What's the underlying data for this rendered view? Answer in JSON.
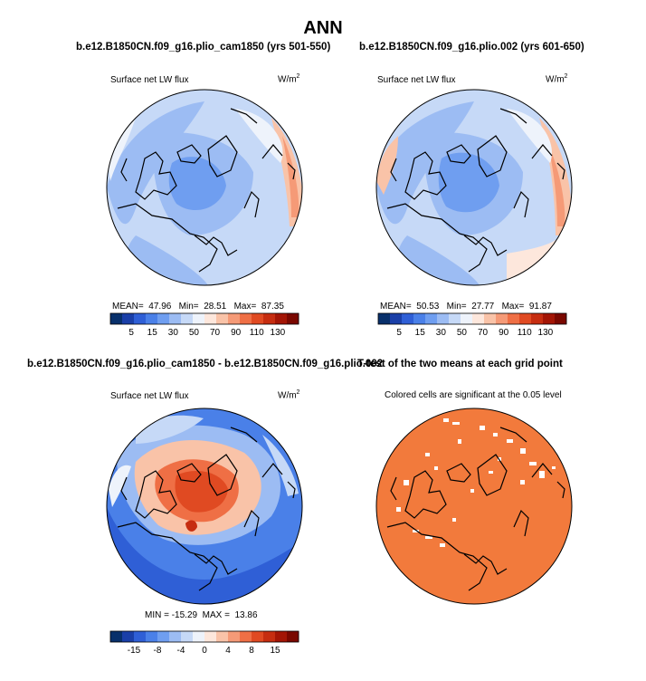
{
  "figure": {
    "title": "ANN"
  },
  "panels": [
    {
      "title": "b.e12.B1850CN.f09_g16.plio_cam1850 (yrs 501-550)",
      "variable": "Surface net LW flux",
      "units_base": "W/m",
      "units_sup": "2",
      "stats": {
        "mean_label": "MEAN=",
        "mean": "47.96",
        "min_label": "Min=",
        "min": "28.51",
        "max_label": "Max=",
        "max": "87.35"
      }
    },
    {
      "title": "b.e12.B1850CN.f09_g16.plio.002 (yrs 601-650)",
      "variable": "Surface net LW flux",
      "units_base": "W/m",
      "units_sup": "2",
      "stats": {
        "mean_label": "MEAN=",
        "mean": "50.53",
        "min_label": "Min=",
        "min": "27.77",
        "max_label": "Max=",
        "max": "91.87"
      }
    },
    {
      "title": "b.e12.B1850CN.f09_g16.plio_cam1850 - b.e12.B1850CN.f09_g16.plio.002",
      "variable": "Surface net LW flux",
      "units_base": "W/m",
      "units_sup": "2",
      "stats_text": "MIN = -15.29  MAX =  13.86"
    },
    {
      "title": "T-test of the two means at each grid point",
      "subtitle": "Colored cells are significant at the 0.05 level"
    }
  ],
  "colors": {
    "diverging": [
      "#08306b",
      "#1a3fa8",
      "#2f5fd6",
      "#4a80e8",
      "#6f9ef0",
      "#9cbcf3",
      "#c6d9f7",
      "#eef3fb",
      "#fde7dc",
      "#f9c3a8",
      "#f59a77",
      "#ef6f45",
      "#e04a22",
      "#c62d10",
      "#a31505",
      "#7a0800"
    ],
    "land": "#000000",
    "ttest_fill": "#f27a3c",
    "ttest_gap": "#ffffff"
  },
  "chart_data": [
    {
      "type": "heatmap",
      "projection": "north polar stereographic",
      "title": "b.e12.B1850CN.f09_g16.plio_cam1850 (yrs 501-550)",
      "variable": "Surface net LW flux",
      "units": "W/m2",
      "mean": 47.96,
      "min": 28.51,
      "max": 87.35,
      "colorbar_ticks": [
        5,
        15,
        30,
        50,
        70,
        90,
        110,
        130
      ]
    },
    {
      "type": "heatmap",
      "projection": "north polar stereographic",
      "title": "b.e12.B1850CN.f09_g16.plio.002 (yrs 601-650)",
      "variable": "Surface net LW flux",
      "units": "W/m2",
      "mean": 50.53,
      "min": 27.77,
      "max": 91.87,
      "colorbar_ticks": [
        5,
        15,
        30,
        50,
        70,
        90,
        110,
        130
      ]
    },
    {
      "type": "heatmap",
      "projection": "north polar stereographic",
      "title": "b.e12.B1850CN.f09_g16.plio_cam1850 - b.e12.B1850CN.f09_g16.plio.002",
      "variable": "Surface net LW flux",
      "units": "W/m2",
      "min": -15.29,
      "max": 13.86,
      "colorbar_ticks": [
        -15,
        -8,
        -4,
        0,
        4,
        8,
        15
      ]
    },
    {
      "type": "heatmap",
      "projection": "north polar stereographic",
      "title": "T-test of the two means at each grid point",
      "subtitle": "Colored cells are significant at the 0.05 level"
    }
  ]
}
